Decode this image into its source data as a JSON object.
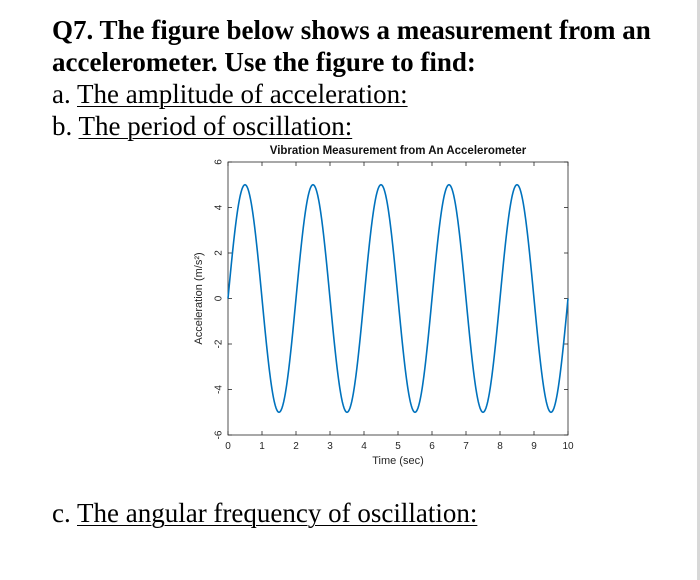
{
  "question": {
    "title": "Q7. The figure below shows a measurement from an accelerometer. Use the figure to find:",
    "part_a_prefix": "a. ",
    "part_a_text": "The amplitude of acceleration:",
    "part_b_prefix": "b. ",
    "part_b_text": "The period of oscillation:",
    "part_c_prefix": "c. ",
    "part_c_text": "The angular frequency of oscillation:"
  },
  "chart_data": {
    "type": "line",
    "title": "Vibration Measurement from An Accelerometer",
    "xlabel": "Time (sec)",
    "ylabel": "Acceleration (m/s²)",
    "xlim": [
      0,
      10
    ],
    "ylim": [
      -6,
      6
    ],
    "xticks": [
      0,
      1,
      2,
      3,
      4,
      5,
      6,
      7,
      8,
      9,
      10
    ],
    "yticks": [
      -6,
      -4,
      -2,
      0,
      2,
      4,
      6
    ],
    "grid": false,
    "series": [
      {
        "color": "#1f77b4",
        "function": "sine",
        "amplitude": 5,
        "period": 2,
        "phase": 0,
        "x_range": [
          0,
          10
        ]
      }
    ]
  },
  "colors": {
    "line": "#0072BD",
    "axis": "#262626"
  }
}
